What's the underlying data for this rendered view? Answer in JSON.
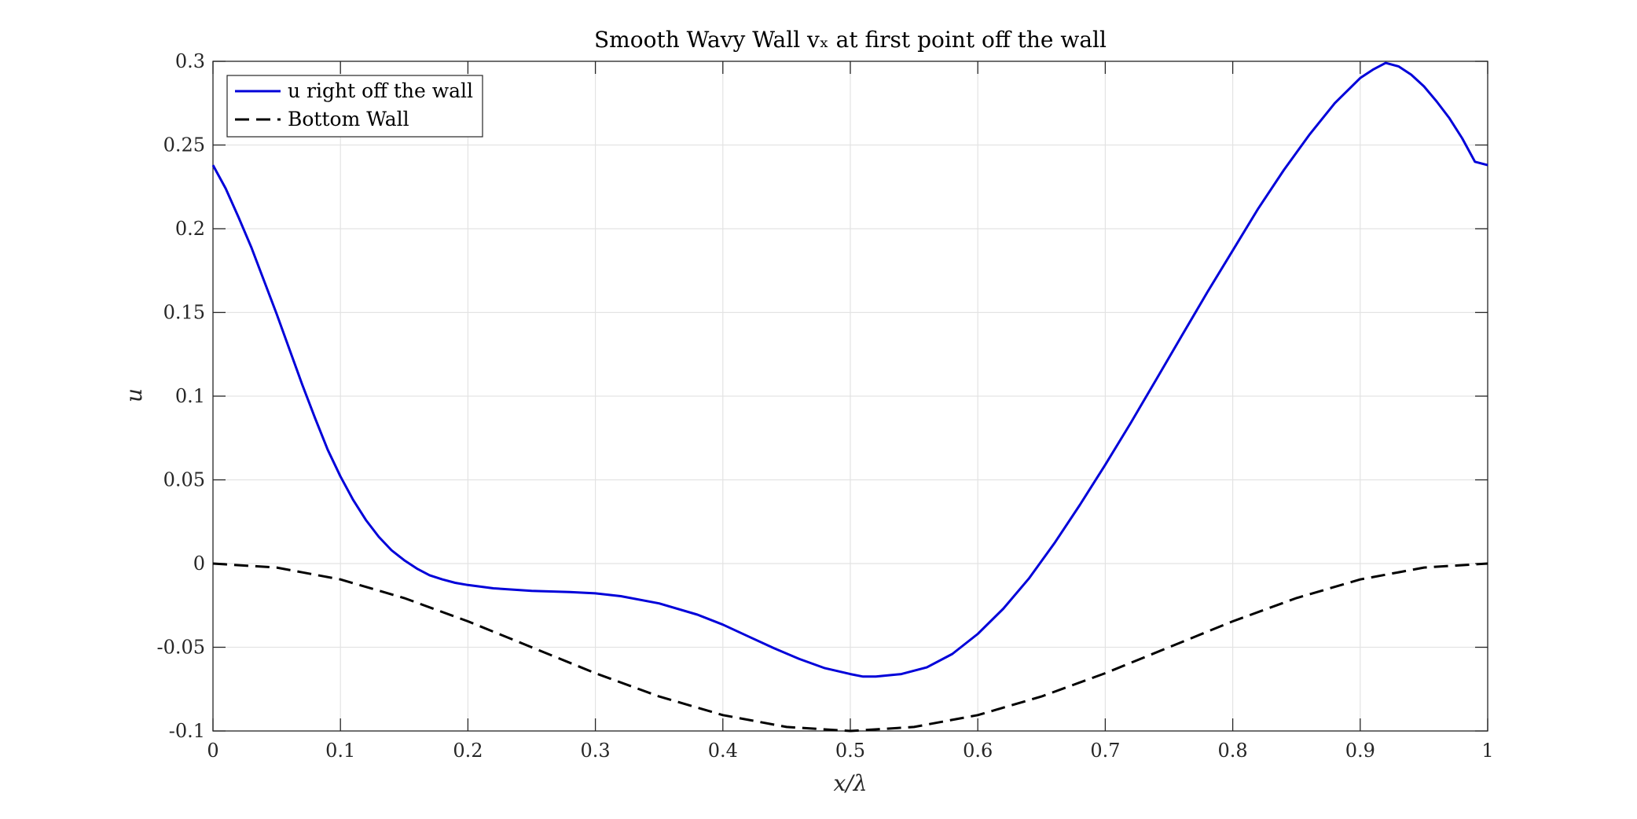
{
  "chart_data": {
    "type": "line",
    "title": "Smooth Wavy Wall vₓ at first point off the wall",
    "xlabel": "x/λ",
    "ylabel": "u",
    "xlim": [
      0,
      1
    ],
    "ylim": [
      -0.1,
      0.3
    ],
    "xticks": [
      0,
      0.1,
      0.2,
      0.3,
      0.4,
      0.5,
      0.6,
      0.7,
      0.8,
      0.9,
      1
    ],
    "xtick_labels": [
      "0",
      "0.1",
      "0.2",
      "0.3",
      "0.4",
      "0.5",
      "0.6",
      "0.7",
      "0.8",
      "0.9",
      "1"
    ],
    "yticks": [
      -0.1,
      -0.05,
      0,
      0.05,
      0.1,
      0.15,
      0.2,
      0.25,
      0.3
    ],
    "ytick_labels": [
      "-0.1",
      "-0.05",
      "0",
      "0.05",
      "0.1",
      "0.15",
      "0.2",
      "0.25",
      "0.3"
    ],
    "grid": true,
    "legend_position": "top-left",
    "series": [
      {
        "name": "u right off the wall",
        "color": "#0000d9",
        "style": "solid",
        "x": [
          0,
          0.01,
          0.02,
          0.03,
          0.04,
          0.05,
          0.06,
          0.07,
          0.08,
          0.09,
          0.1,
          0.11,
          0.12,
          0.13,
          0.14,
          0.15,
          0.16,
          0.17,
          0.18,
          0.19,
          0.2,
          0.22,
          0.25,
          0.28,
          0.3,
          0.32,
          0.35,
          0.38,
          0.4,
          0.42,
          0.44,
          0.46,
          0.48,
          0.5,
          0.51,
          0.52,
          0.54,
          0.56,
          0.58,
          0.6,
          0.62,
          0.64,
          0.66,
          0.68,
          0.7,
          0.72,
          0.74,
          0.76,
          0.78,
          0.8,
          0.82,
          0.84,
          0.86,
          0.88,
          0.9,
          0.91,
          0.92,
          0.93,
          0.94,
          0.95,
          0.96,
          0.97,
          0.98,
          0.99,
          1
        ],
        "y": [
          0.238,
          0.224,
          0.207,
          0.189,
          0.169,
          0.149,
          0.128,
          0.107,
          0.087,
          0.068,
          0.052,
          0.038,
          0.026,
          0.016,
          0.008,
          0.002,
          -0.003,
          -0.007,
          -0.0095,
          -0.0115,
          -0.0128,
          -0.0148,
          -0.0163,
          -0.017,
          -0.0178,
          -0.0195,
          -0.0238,
          -0.0305,
          -0.0365,
          -0.0435,
          -0.0505,
          -0.057,
          -0.0625,
          -0.066,
          -0.0675,
          -0.0675,
          -0.066,
          -0.062,
          -0.054,
          -0.042,
          -0.027,
          -0.009,
          0.012,
          0.035,
          0.059,
          0.084,
          0.11,
          0.136,
          0.162,
          0.187,
          0.212,
          0.235,
          0.256,
          0.275,
          0.29,
          0.295,
          0.299,
          0.297,
          0.292,
          0.285,
          0.276,
          0.266,
          0.254,
          0.24,
          0.238
        ]
      },
      {
        "name": "Bottom Wall",
        "color": "#000000",
        "style": "dashed",
        "x": [
          0,
          0.05,
          0.1,
          0.15,
          0.2,
          0.25,
          0.3,
          0.35,
          0.4,
          0.45,
          0.5,
          0.55,
          0.6,
          0.65,
          0.7,
          0.75,
          0.8,
          0.85,
          0.9,
          0.95,
          1
        ],
        "y": [
          0,
          -0.0024,
          -0.0095,
          -0.0206,
          -0.0345,
          -0.05,
          -0.0655,
          -0.0794,
          -0.0905,
          -0.0976,
          -0.1,
          -0.0976,
          -0.0905,
          -0.0794,
          -0.0655,
          -0.05,
          -0.0345,
          -0.0206,
          -0.0095,
          -0.0024,
          0
        ]
      }
    ]
  }
}
